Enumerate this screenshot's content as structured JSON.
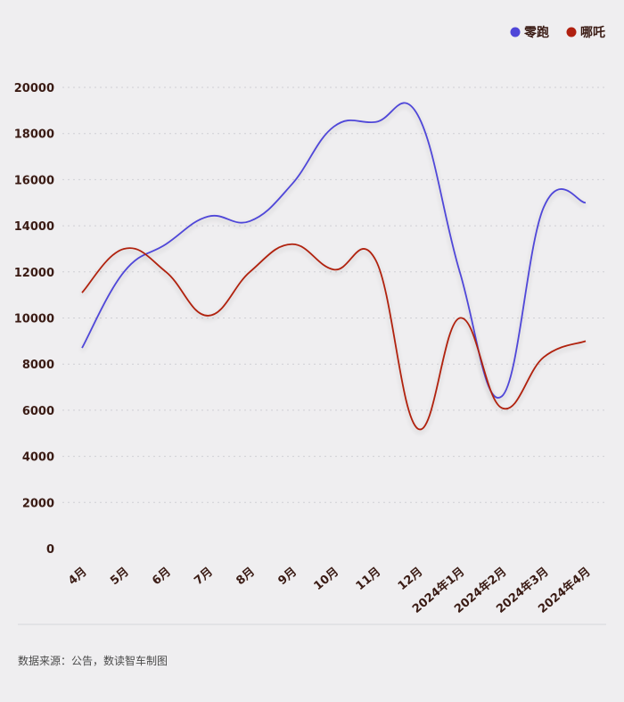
{
  "chart_data": {
    "type": "line",
    "title": "",
    "xlabel": "",
    "ylabel": "",
    "ylim": [
      0,
      20000
    ],
    "yticks": [
      0,
      2000,
      4000,
      6000,
      8000,
      10000,
      12000,
      14000,
      16000,
      18000,
      20000
    ],
    "grid": true,
    "legend_position": "top-right",
    "categories": [
      "4月",
      "5月",
      "6月",
      "7月",
      "8月",
      "9月",
      "10月",
      "11月",
      "12月",
      "2024年1月",
      "2024年2月",
      "2024年3月",
      "2024年4月"
    ],
    "series": [
      {
        "name": "零跑",
        "color": "#4f46d8",
        "values": [
          8700,
          12000,
          13200,
          14400,
          14200,
          15800,
          18300,
          18500,
          18800,
          12000,
          6600,
          14800,
          15000
        ]
      },
      {
        "name": "哪吒",
        "color": "#b02010",
        "values": [
          11100,
          13000,
          12000,
          10100,
          12000,
          13200,
          12100,
          12500,
          5200,
          10000,
          6100,
          8300,
          9000
        ]
      }
    ]
  },
  "footer": {
    "source": "数据来源：公告，数读智车制图"
  }
}
